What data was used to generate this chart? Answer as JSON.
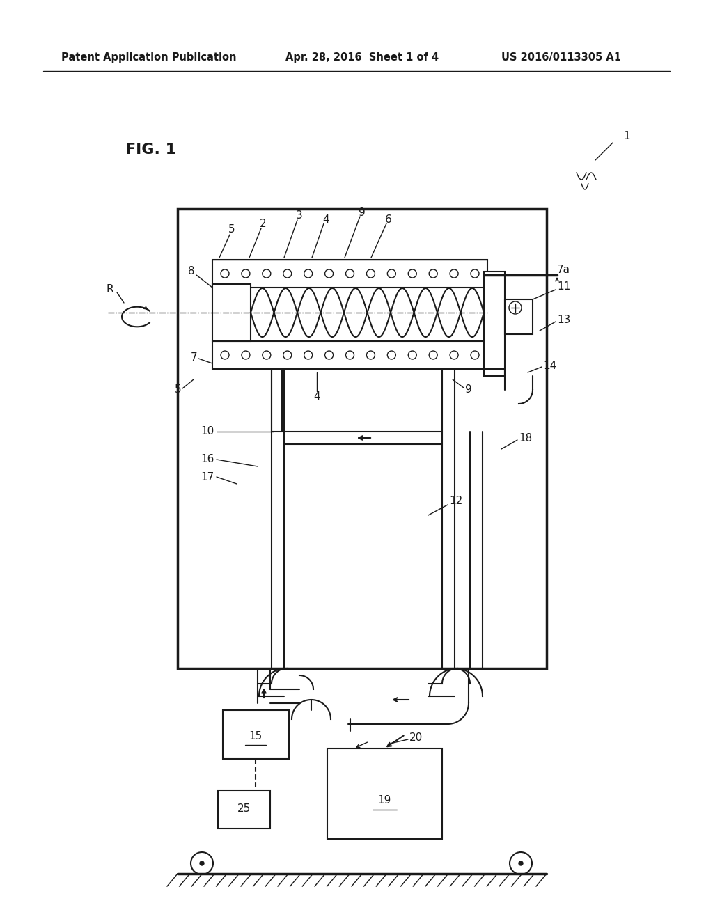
{
  "bg_color": "#ffffff",
  "line_color": "#1a1a1a",
  "header_left": "Patent Application Publication",
  "header_center": "Apr. 28, 2016  Sheet 1 of 4",
  "header_right": "US 2016/0113305 A1",
  "fig_label": "FIG. 1"
}
